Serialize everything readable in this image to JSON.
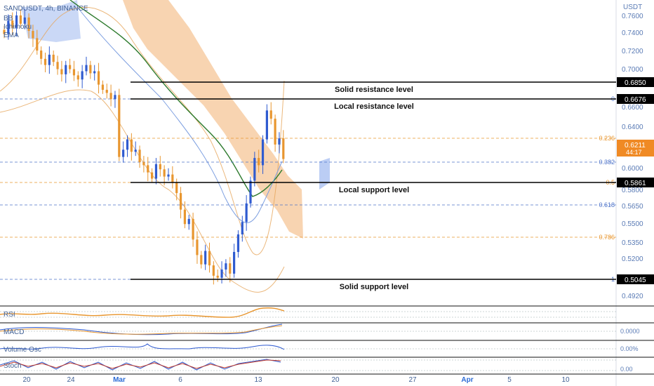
{
  "header": {
    "symbol_line": "SANDUSDT, 4h, BINANCE",
    "indicators": [
      "BB",
      "Ichimoku",
      "EMA"
    ]
  },
  "currency_label": "USDT",
  "chart_data": {
    "type": "candlestick",
    "y_ticks": [
      "0.7600",
      "0.7400",
      "0.7200",
      "0.7000",
      "0.6600",
      "0.6400",
      "0.6000",
      "0.5800",
      "0.5650",
      "0.5500",
      "0.5350",
      "0.5200",
      "0.4920"
    ],
    "x_ticks": [
      "20",
      "24",
      "Mar",
      "6",
      "13",
      "20",
      "27",
      "Apr",
      "5",
      "10"
    ],
    "horizontal_levels": [
      {
        "label": "Solid resistance level",
        "price": "0.6850"
      },
      {
        "label": "Local resistance level",
        "price": "0.6676"
      },
      {
        "label": "Local support level",
        "price": "0.5861"
      },
      {
        "label": "Solid support level",
        "price": "0.5045"
      }
    ],
    "fib_levels": [
      {
        "ratio": "0",
        "color": "blue"
      },
      {
        "ratio": "0.236",
        "color": "orange"
      },
      {
        "ratio": "0.382",
        "color": "blue"
      },
      {
        "ratio": "0.5",
        "color": "orange"
      },
      {
        "ratio": "0.618",
        "color": "blue"
      },
      {
        "ratio": "0.786",
        "color": "orange"
      },
      {
        "ratio": "1",
        "color": "blue"
      }
    ],
    "current_price": "0.6211",
    "countdown": "44:17",
    "candle_closes": [
      0.742,
      0.755,
      0.748,
      0.76,
      0.752,
      0.758,
      0.745,
      0.738,
      0.726,
      0.718,
      0.712,
      0.722,
      0.715,
      0.708,
      0.703,
      0.712,
      0.708,
      0.702,
      0.698,
      0.706,
      0.712,
      0.704,
      0.706,
      0.693,
      0.688,
      0.685,
      0.679,
      0.683,
      0.623,
      0.63,
      0.64,
      0.628,
      0.63,
      0.618,
      0.615,
      0.608,
      0.602,
      0.616,
      0.611,
      0.604,
      0.606,
      0.598,
      0.588,
      0.572,
      0.558,
      0.563,
      0.543,
      0.528,
      0.519,
      0.532,
      0.518,
      0.508,
      0.506,
      0.514,
      0.52,
      0.51,
      0.531,
      0.548,
      0.56,
      0.578,
      0.6,
      0.622,
      0.615,
      0.64,
      0.668,
      0.66,
      0.635,
      0.641,
      0.621
    ],
    "indicator_panels": [
      {
        "name": "RSI",
        "value": ""
      },
      {
        "name": "MACD",
        "value": "0.0000"
      },
      {
        "name": "Volume Osc",
        "value": "0.00%"
      },
      {
        "name": "Stoch",
        "value": "0.00"
      }
    ],
    "colors": {
      "up": "#2f5bd0",
      "down": "#e8962f",
      "cloud": "#f6c697",
      "ema": "#2d7a2d",
      "bb": "#e6a55a"
    }
  }
}
